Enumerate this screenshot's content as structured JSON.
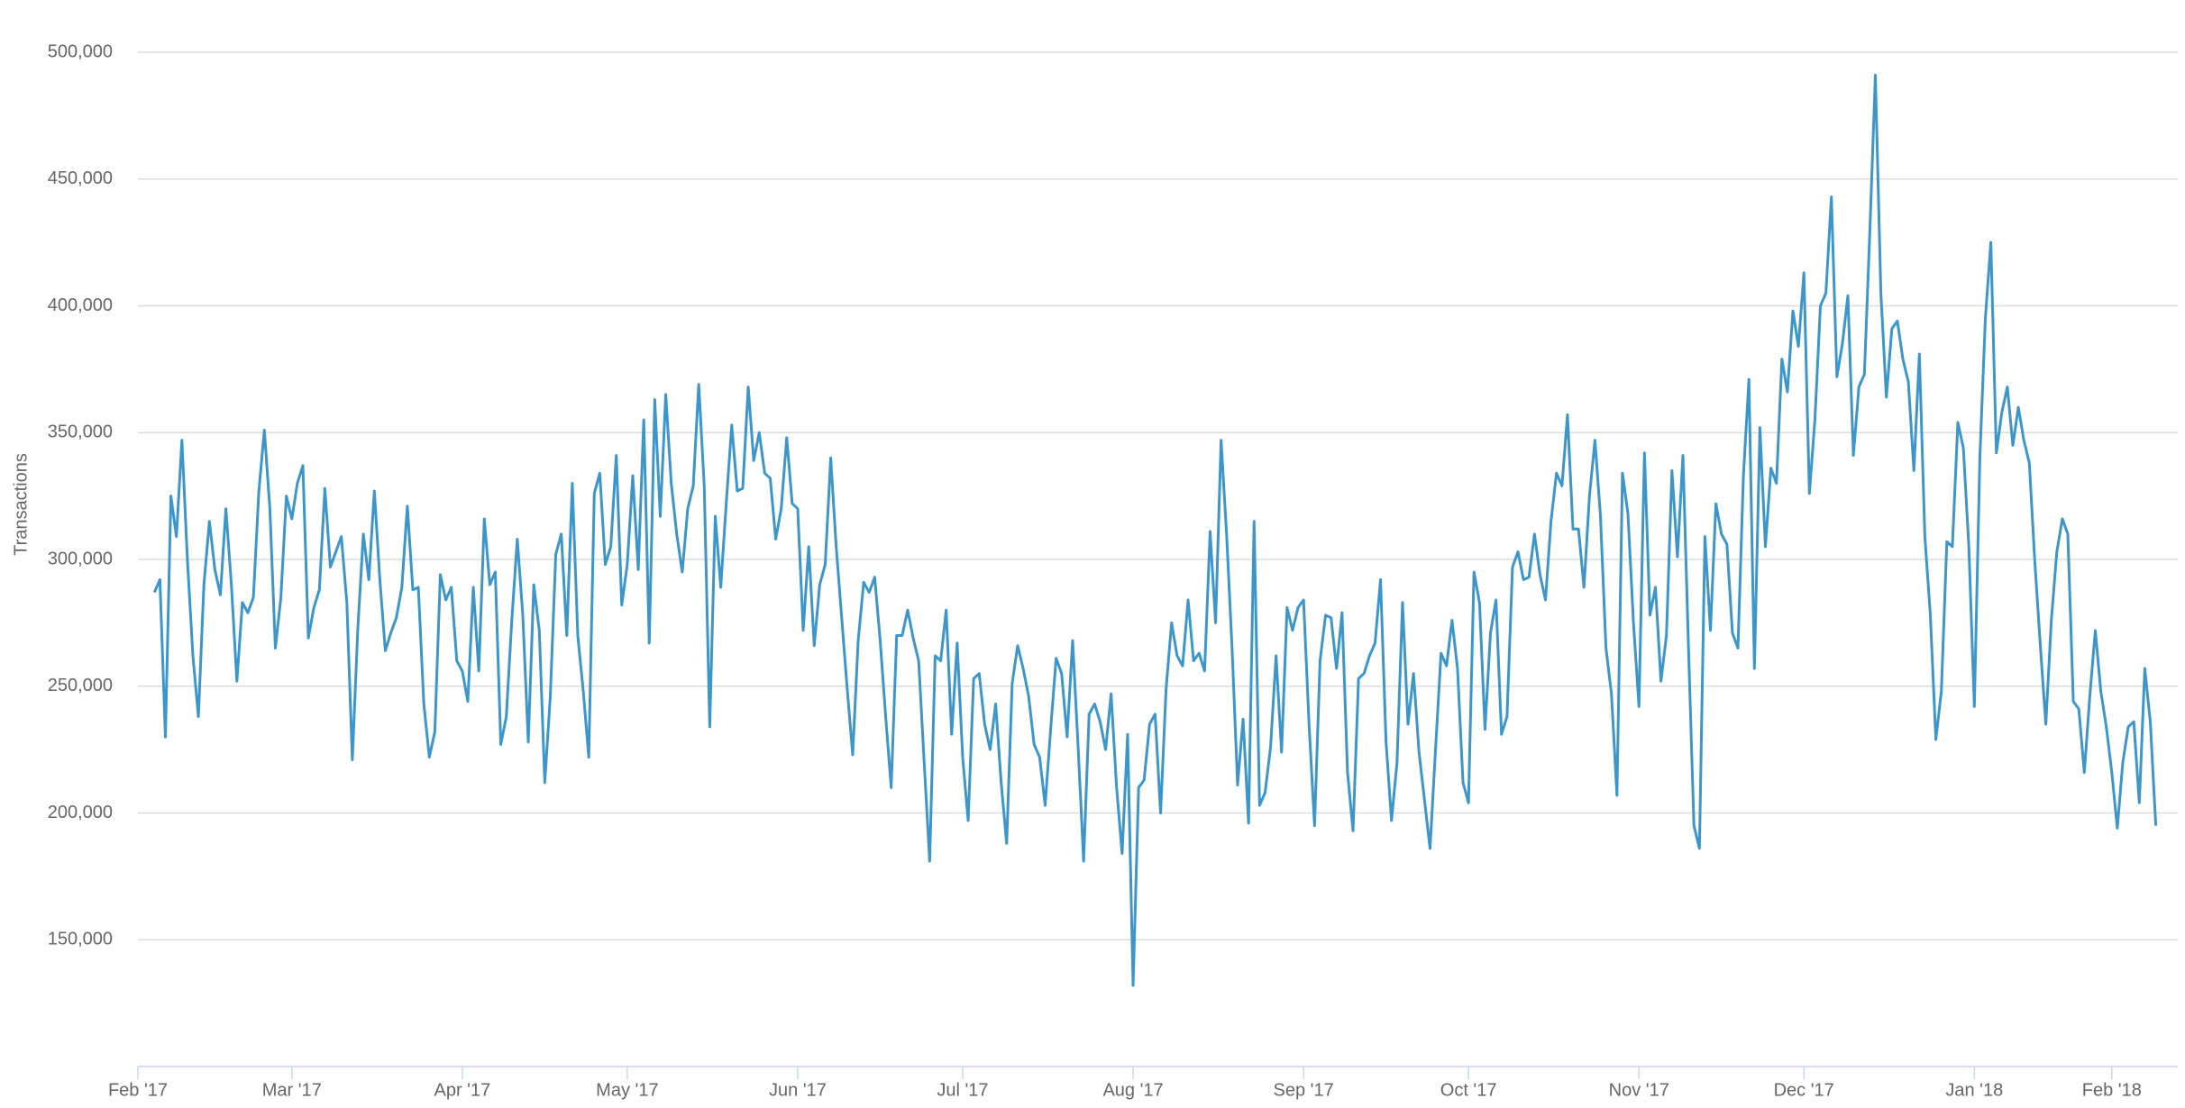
{
  "chart_data": {
    "type": "line",
    "y_label": "Transactions",
    "series": [
      {
        "name": "Transactions",
        "color": "#3d96c9",
        "values": [
          287000,
          292000,
          230000,
          325000,
          309000,
          347000,
          300000,
          262000,
          238000,
          290000,
          315000,
          296000,
          286000,
          320000,
          290000,
          252000,
          283000,
          279000,
          285000,
          327000,
          351000,
          320000,
          265000,
          285000,
          325000,
          316000,
          330000,
          337000,
          269000,
          281000,
          288000,
          328000,
          297000,
          303000,
          309000,
          283000,
          221000,
          273000,
          310000,
          292000,
          327000,
          292000,
          264000,
          271000,
          277000,
          289000,
          321000,
          288000,
          289000,
          243000,
          222000,
          232000,
          294000,
          284000,
          289000,
          260000,
          256000,
          244000,
          289000,
          256000,
          316000,
          290000,
          295000,
          227000,
          238000,
          276000,
          308000,
          278000,
          228000,
          290000,
          272000,
          212000,
          246000,
          302000,
          310000,
          270000,
          330000,
          270000,
          248000,
          222000,
          326000,
          334000,
          298000,
          305000,
          341000,
          282000,
          298000,
          333000,
          296000,
          355000,
          267000,
          363000,
          317000,
          365000,
          330000,
          310000,
          295000,
          320000,
          329000,
          369000,
          329000,
          234000,
          317000,
          289000,
          322000,
          353000,
          327000,
          328000,
          368000,
          339000,
          350000,
          334000,
          332000,
          308000,
          320000,
          348000,
          322000,
          320000,
          272000,
          305000,
          266000,
          290000,
          298000,
          340000,
          305000,
          277000,
          249000,
          223000,
          268000,
          291000,
          287000,
          293000,
          268000,
          238000,
          210000,
          270000,
          270000,
          280000,
          269000,
          260000,
          220000,
          181000,
          262000,
          260000,
          280000,
          231000,
          267000,
          222000,
          197000,
          253000,
          255000,
          235000,
          225000,
          243000,
          212000,
          188000,
          251000,
          266000,
          257000,
          246000,
          227000,
          222000,
          203000,
          233000,
          261000,
          255000,
          230000,
          268000,
          226000,
          181000,
          239000,
          243000,
          236000,
          225000,
          247000,
          210000,
          184000,
          231000,
          132000,
          210000,
          213000,
          235000,
          239000,
          200000,
          249000,
          275000,
          262000,
          258000,
          284000,
          260000,
          263000,
          256000,
          311000,
          275000,
          347000,
          310000,
          265000,
          211000,
          237000,
          196000,
          315000,
          203000,
          208000,
          226000,
          262000,
          224000,
          281000,
          272000,
          281000,
          284000,
          235000,
          195000,
          260000,
          278000,
          277000,
          257000,
          279000,
          216000,
          193000,
          253000,
          255000,
          262000,
          267000,
          292000,
          228000,
          197000,
          220000,
          283000,
          235000,
          255000,
          224000,
          205000,
          186000,
          225000,
          263000,
          258000,
          276000,
          257000,
          212000,
          204000,
          295000,
          283000,
          233000,
          271000,
          284000,
          231000,
          238000,
          297000,
          303000,
          292000,
          293000,
          310000,
          294000,
          284000,
          315000,
          334000,
          329000,
          357000,
          312000,
          312000,
          289000,
          325000,
          347000,
          317000,
          265000,
          247000,
          207000,
          334000,
          318000,
          275000,
          242000,
          342000,
          278000,
          289000,
          252000,
          270000,
          335000,
          301000,
          341000,
          266000,
          195000,
          186000,
          309000,
          272000,
          322000,
          310000,
          306000,
          271000,
          265000,
          333000,
          371000,
          257000,
          352000,
          305000,
          336000,
          330000,
          379000,
          366000,
          398000,
          384000,
          413000,
          326000,
          355000,
          400000,
          405000,
          443000,
          372000,
          385000,
          404000,
          341000,
          368000,
          373000,
          430000,
          491000,
          405000,
          364000,
          391000,
          394000,
          379000,
          370000,
          335000,
          381000,
          309000,
          278000,
          229000,
          248000,
          307000,
          305000,
          354000,
          344000,
          305000,
          242000,
          340000,
          395000,
          425000,
          342000,
          358000,
          368000,
          345000,
          360000,
          347000,
          338000,
          299000,
          266000,
          235000,
          276000,
          303000,
          316000,
          310000,
          244000,
          241000,
          216000,
          246000,
          272000,
          248000,
          234000,
          216000,
          194000,
          220000,
          234000,
          236000,
          204000,
          257000,
          236000,
          195000
        ]
      }
    ],
    "xlim": [
      -3,
      368
    ],
    "xticks": [
      {
        "value": -3,
        "label": "Feb '17"
      },
      {
        "value": 25,
        "label": "Mar '17"
      },
      {
        "value": 56,
        "label": "Apr '17"
      },
      {
        "value": 86,
        "label": "May '17"
      },
      {
        "value": 117,
        "label": "Jun '17"
      },
      {
        "value": 147,
        "label": "Jul '17"
      },
      {
        "value": 178,
        "label": "Aug '17"
      },
      {
        "value": 209,
        "label": "Sep '17"
      },
      {
        "value": 239,
        "label": "Oct '17"
      },
      {
        "value": 270,
        "label": "Nov '17"
      },
      {
        "value": 300,
        "label": "Dec '17"
      },
      {
        "value": 331,
        "label": "Jan '18"
      },
      {
        "value": 356,
        "label": "Feb '18"
      }
    ],
    "ylim": [
      100000,
      500000
    ],
    "yticks": [
      {
        "value": 150000,
        "label": "150,000"
      },
      {
        "value": 200000,
        "label": "200,000"
      },
      {
        "value": 250000,
        "label": "250,000"
      },
      {
        "value": 300000,
        "label": "300,000"
      },
      {
        "value": 350000,
        "label": "350,000"
      },
      {
        "value": 400000,
        "label": "400,000"
      },
      {
        "value": 450000,
        "label": "450,000"
      },
      {
        "value": 500000,
        "label": "500,000"
      }
    ],
    "grid": true
  }
}
